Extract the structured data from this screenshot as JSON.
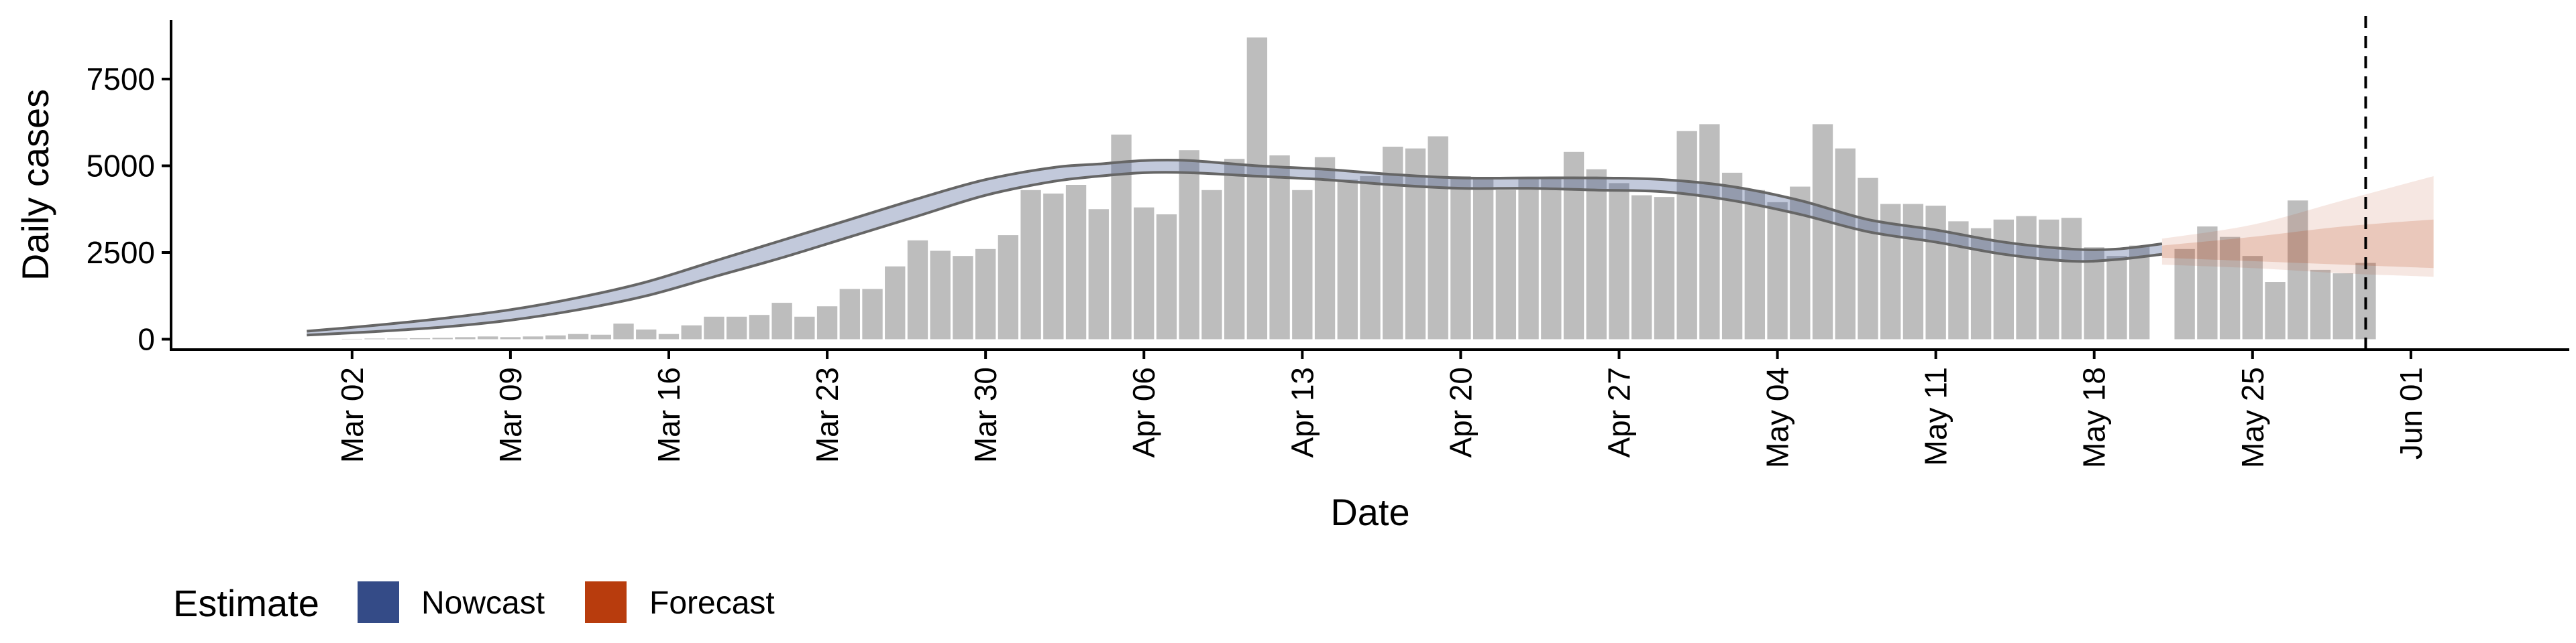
{
  "chart_data": {
    "type": "bar",
    "title": "",
    "xlabel": "Date",
    "ylabel": "Daily cases",
    "ylim": [
      -300,
      9200
    ],
    "yticks": [
      0,
      2500,
      5000,
      7500
    ],
    "ytick_labels": [
      "0",
      "2500",
      "5000",
      "7500"
    ],
    "xlim": [
      "2020-02-23",
      "2020-06-08"
    ],
    "xticks": [
      "2020-03-02",
      "2020-03-09",
      "2020-03-16",
      "2020-03-23",
      "2020-03-30",
      "2020-04-06",
      "2020-04-13",
      "2020-04-20",
      "2020-04-27",
      "2020-05-04",
      "2020-05-11",
      "2020-05-18",
      "2020-05-25",
      "2020-06-01"
    ],
    "xtick_labels": [
      "Mar 02",
      "Mar 09",
      "Mar 16",
      "Mar 23",
      "Mar 30",
      "Apr 06",
      "Apr 13",
      "Apr 20",
      "Apr 27",
      "May 04",
      "May 11",
      "May 18",
      "May 25",
      "Jun 01"
    ],
    "grid": false,
    "vline_date": "2020-05-30",
    "bars": {
      "color": "#bdbdbd",
      "dates": [
        "2020-03-02",
        "2020-03-03",
        "2020-03-04",
        "2020-03-05",
        "2020-03-06",
        "2020-03-07",
        "2020-03-08",
        "2020-03-09",
        "2020-03-10",
        "2020-03-11",
        "2020-03-12",
        "2020-03-13",
        "2020-03-14",
        "2020-03-15",
        "2020-03-16",
        "2020-03-17",
        "2020-03-18",
        "2020-03-19",
        "2020-03-20",
        "2020-03-21",
        "2020-03-22",
        "2020-03-23",
        "2020-03-24",
        "2020-03-25",
        "2020-03-26",
        "2020-03-27",
        "2020-03-28",
        "2020-03-29",
        "2020-03-30",
        "2020-03-31",
        "2020-04-01",
        "2020-04-02",
        "2020-04-03",
        "2020-04-04",
        "2020-04-05",
        "2020-04-06",
        "2020-04-07",
        "2020-04-08",
        "2020-04-09",
        "2020-04-10",
        "2020-04-11",
        "2020-04-12",
        "2020-04-13",
        "2020-04-14",
        "2020-04-15",
        "2020-04-16",
        "2020-04-17",
        "2020-04-18",
        "2020-04-19",
        "2020-04-20",
        "2020-04-21",
        "2020-04-22",
        "2020-04-23",
        "2020-04-24",
        "2020-04-25",
        "2020-04-26",
        "2020-04-27",
        "2020-04-28",
        "2020-04-29",
        "2020-04-30",
        "2020-05-01",
        "2020-05-02",
        "2020-05-03",
        "2020-05-04",
        "2020-05-05",
        "2020-05-06",
        "2020-05-07",
        "2020-05-08",
        "2020-05-09",
        "2020-05-10",
        "2020-05-11",
        "2020-05-12",
        "2020-05-13",
        "2020-05-14",
        "2020-05-15",
        "2020-05-16",
        "2020-05-17",
        "2020-05-18",
        "2020-05-19",
        "2020-05-20",
        "2020-05-22",
        "2020-05-23",
        "2020-05-24",
        "2020-05-25",
        "2020-05-26",
        "2020-05-27",
        "2020-05-28",
        "2020-05-29",
        "2020-05-30"
      ],
      "values": [
        10,
        20,
        20,
        30,
        40,
        60,
        80,
        60,
        80,
        110,
        150,
        130,
        450,
        280,
        150,
        400,
        650,
        650,
        700,
        1050,
        650,
        950,
        1450,
        1450,
        2100,
        2850,
        2550,
        2400,
        2600,
        3000,
        4300,
        4200,
        4450,
        3750,
        5900,
        3800,
        3600,
        5450,
        4300,
        5200,
        8700,
        5300,
        4300,
        5250,
        4600,
        4700,
        5550,
        5500,
        5850,
        4700,
        4650,
        4300,
        4650,
        4650,
        5400,
        4900,
        4500,
        4150,
        4100,
        6000,
        6200,
        4800,
        4300,
        3950,
        4400,
        6200,
        5500,
        4650,
        3900,
        3900,
        3850,
        3400,
        3200,
        3450,
        3550,
        3450,
        3500,
        2650,
        2400,
        2700,
        2600,
        3250,
        2950,
        2400,
        1650,
        4000,
        2000,
        1900,
        2200
      ]
    },
    "series": [
      {
        "name": "Nowcast",
        "color": "#344b87",
        "dates": [
          "2020-02-29",
          "2020-03-03",
          "2020-03-06",
          "2020-03-09",
          "2020-03-12",
          "2020-03-15",
          "2020-03-18",
          "2020-03-21",
          "2020-03-24",
          "2020-03-27",
          "2020-03-30",
          "2020-04-02",
          "2020-04-04",
          "2020-04-06",
          "2020-04-08",
          "2020-04-11",
          "2020-04-14",
          "2020-04-17",
          "2020-04-20",
          "2020-04-23",
          "2020-04-26",
          "2020-04-29",
          "2020-05-02",
          "2020-05-05",
          "2020-05-08",
          "2020-05-11",
          "2020-05-14",
          "2020-05-17",
          "2020-05-19",
          "2020-05-21"
        ],
        "lower": [
          120,
          220,
          350,
          550,
          850,
          1250,
          1800,
          2350,
          2950,
          3550,
          4150,
          4550,
          4700,
          4800,
          4800,
          4700,
          4600,
          4450,
          4350,
          4350,
          4300,
          4250,
          4000,
          3600,
          3100,
          2800,
          2450,
          2250,
          2300,
          2450
        ],
        "upper": [
          230,
          400,
          600,
          850,
          1200,
          1650,
          2250,
          2850,
          3450,
          4050,
          4600,
          4950,
          5050,
          5150,
          5150,
          5000,
          4900,
          4750,
          4650,
          4650,
          4650,
          4600,
          4400,
          4000,
          3450,
          3150,
          2800,
          2600,
          2600,
          2750
        ]
      },
      {
        "name": "Forecast",
        "color": "#b83c0d",
        "dates": [
          "2020-05-21",
          "2020-05-25",
          "2020-05-29",
          "2020-06-02"
        ],
        "lower": [
          2150,
          2050,
          1900,
          1800
        ],
        "upper": [
          2900,
          3300,
          4000,
          4700
        ],
        "inner_lower": [
          2350,
          2250,
          2150,
          2050
        ],
        "inner_upper": [
          2700,
          2950,
          3250,
          3450
        ]
      }
    ],
    "legend": {
      "position": "bottom-left",
      "title": "Estimate",
      "items": [
        {
          "label": "Nowcast",
          "color": "#344b87"
        },
        {
          "label": "Forecast",
          "color": "#b83c0d"
        }
      ]
    }
  }
}
